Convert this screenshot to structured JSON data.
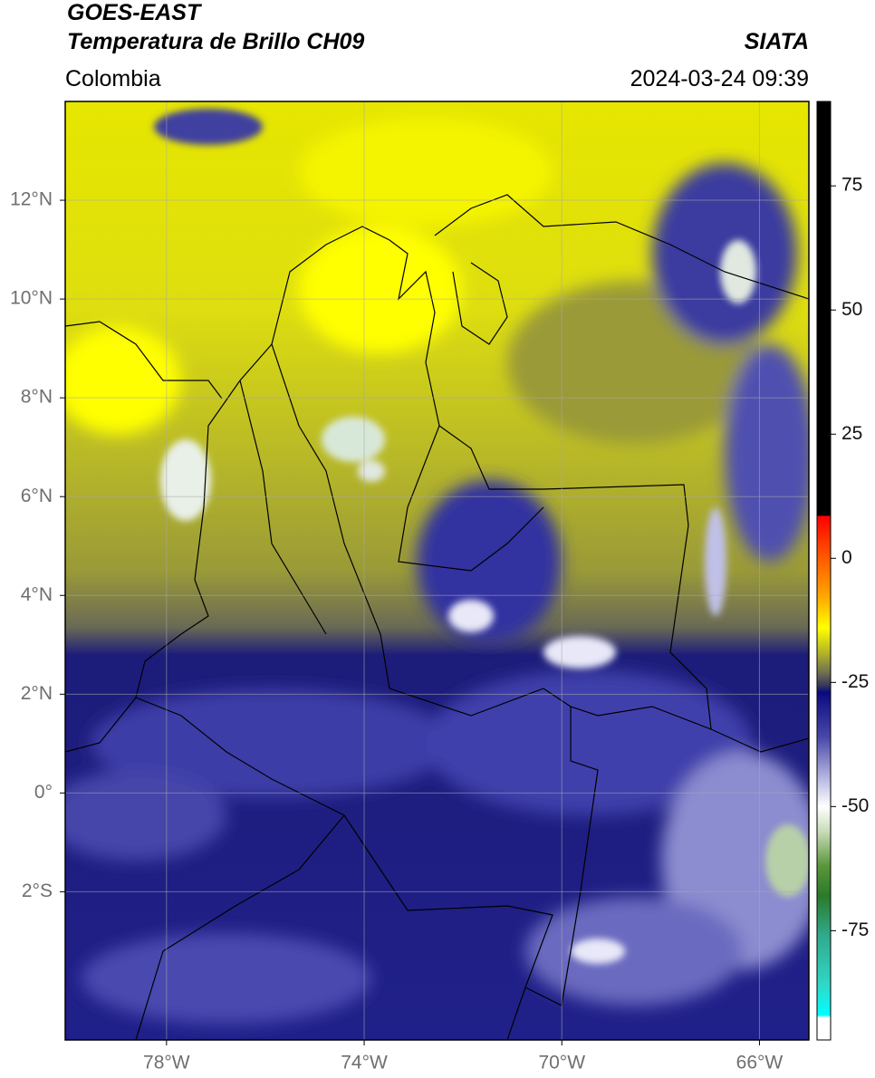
{
  "header": {
    "satellite": "GOES-EAST",
    "product": "Temperatura de Brillo CH09",
    "source": "SIATA",
    "region": "Colombia",
    "datetime": "2024-03-24 09:39"
  },
  "map": {
    "xlim": [
      -80.05,
      -65
    ],
    "ylim": [
      -5,
      14
    ],
    "xticks": [
      {
        "value": -78,
        "label": "78°W"
      },
      {
        "value": -74,
        "label": "74°W"
      },
      {
        "value": -70,
        "label": "70°W"
      },
      {
        "value": -66,
        "label": "66°W"
      }
    ],
    "yticks": [
      {
        "value": 12,
        "label": "12°N"
      },
      {
        "value": 10,
        "label": "10°N"
      },
      {
        "value": 8,
        "label": "8°N"
      },
      {
        "value": 6,
        "label": "6°N"
      },
      {
        "value": 4,
        "label": "4°N"
      },
      {
        "value": 2,
        "label": "2°N"
      },
      {
        "value": 0,
        "label": "0°"
      },
      {
        "value": -2,
        "label": "2°S"
      }
    ],
    "grid": true
  },
  "colorbar": {
    "clim": [
      -97,
      92
    ],
    "ticks": [
      75,
      50,
      25,
      0,
      -25,
      -50,
      -75
    ],
    "colormap": [
      {
        "value": 92,
        "color": "#000000"
      },
      {
        "value": 8.6,
        "color": "#000000"
      },
      {
        "value": 8.5,
        "color": "#ff0000"
      },
      {
        "value": 0,
        "color": "#ff5a00"
      },
      {
        "value": -8,
        "color": "#ffaa00"
      },
      {
        "value": -14,
        "color": "#ffff00"
      },
      {
        "value": -19,
        "color": "#b4b428"
      },
      {
        "value": -23,
        "color": "#707050"
      },
      {
        "value": -25.5,
        "color": "#3a3a5a"
      },
      {
        "value": -27,
        "color": "#0a0a80"
      },
      {
        "value": -36,
        "color": "#4848a8"
      },
      {
        "value": -45,
        "color": "#c0c0e6"
      },
      {
        "value": -50,
        "color": "#ffffff"
      },
      {
        "value": -55,
        "color": "#c8dcb8"
      },
      {
        "value": -62,
        "color": "#5a963a"
      },
      {
        "value": -68,
        "color": "#2a7a2a"
      },
      {
        "value": -76,
        "color": "#30aa8c"
      },
      {
        "value": -86,
        "color": "#30d8c8"
      },
      {
        "value": -92,
        "color": "#00ffff"
      },
      {
        "value": -92.5,
        "color": "#ffffff"
      },
      {
        "value": -97,
        "color": "#ffffff"
      }
    ]
  }
}
